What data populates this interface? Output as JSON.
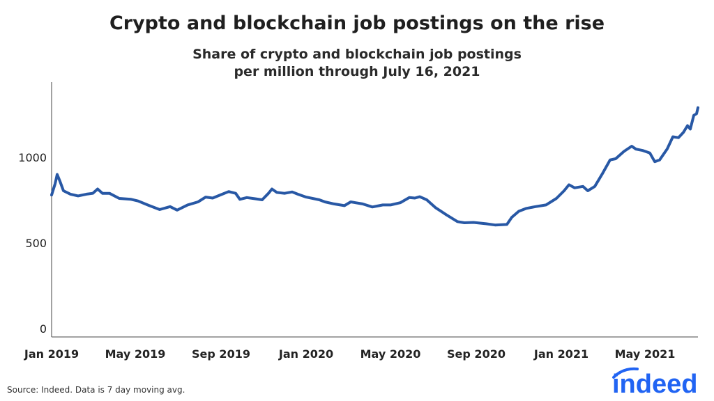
{
  "header": {
    "title": "Crypto and blockchain job postings on the rise",
    "subtitle_line1": "Share of crypto and blockchain job postings",
    "subtitle_line2": "per million through July 16, 2021"
  },
  "footer": {
    "source": "Source: Indeed. Data is 7 day moving avg.",
    "brand": "indeed"
  },
  "colors": {
    "line": "#2858a5",
    "axis": "#444444",
    "brand": "#2164f3"
  },
  "chart_data": {
    "type": "line",
    "title": "Crypto and blockchain job postings on the rise",
    "subtitle": "Share of crypto and blockchain job postings per million through July 16, 2021",
    "xlabel": "",
    "ylabel": "",
    "x_range": [
      "2019-01-01",
      "2021-07-16"
    ],
    "ylim": [
      0,
      1400
    ],
    "yticks": [
      0,
      500,
      1000
    ],
    "xtick_labels": [
      "Jan 2019",
      "May 2019",
      "Sep 2019",
      "Jan 2020",
      "May 2020",
      "Sep 2020",
      "Jan 2021",
      "May 2021"
    ],
    "xtick_dates": [
      "2019-01-01",
      "2019-05-01",
      "2019-09-01",
      "2020-01-01",
      "2020-05-01",
      "2020-09-01",
      "2021-01-01",
      "2021-05-01"
    ],
    "grid": false,
    "legend": "none",
    "series": [
      {
        "points": [
          [
            "2019-01-01",
            780
          ],
          [
            "2019-01-06",
            845
          ],
          [
            "2019-01-09",
            900
          ],
          [
            "2019-01-13",
            860
          ],
          [
            "2019-01-18",
            805
          ],
          [
            "2019-01-28",
            785
          ],
          [
            "2019-02-08",
            775
          ],
          [
            "2019-02-20",
            785
          ],
          [
            "2019-03-01",
            790
          ],
          [
            "2019-03-08",
            815
          ],
          [
            "2019-03-15",
            790
          ],
          [
            "2019-03-25",
            790
          ],
          [
            "2019-04-08",
            760
          ],
          [
            "2019-04-25",
            755
          ],
          [
            "2019-05-05",
            745
          ],
          [
            "2019-05-20",
            720
          ],
          [
            "2019-06-05",
            695
          ],
          [
            "2019-06-20",
            712
          ],
          [
            "2019-06-30",
            692
          ],
          [
            "2019-07-15",
            722
          ],
          [
            "2019-07-30",
            740
          ],
          [
            "2019-08-10",
            768
          ],
          [
            "2019-08-20",
            762
          ],
          [
            "2019-09-01",
            782
          ],
          [
            "2019-09-12",
            800
          ],
          [
            "2019-09-22",
            790
          ],
          [
            "2019-09-28",
            755
          ],
          [
            "2019-10-08",
            765
          ],
          [
            "2019-10-20",
            758
          ],
          [
            "2019-10-30",
            752
          ],
          [
            "2019-11-08",
            790
          ],
          [
            "2019-11-13",
            815
          ],
          [
            "2019-11-20",
            795
          ],
          [
            "2019-12-01",
            790
          ],
          [
            "2019-12-12",
            798
          ],
          [
            "2019-12-20",
            785
          ],
          [
            "2020-01-01",
            768
          ],
          [
            "2020-01-20",
            752
          ],
          [
            "2020-01-28",
            740
          ],
          [
            "2020-02-10",
            728
          ],
          [
            "2020-02-25",
            718
          ],
          [
            "2020-03-05",
            740
          ],
          [
            "2020-03-22",
            728
          ],
          [
            "2020-04-05",
            710
          ],
          [
            "2020-04-20",
            722
          ],
          [
            "2020-05-01",
            722
          ],
          [
            "2020-05-15",
            735
          ],
          [
            "2020-05-28",
            765
          ],
          [
            "2020-06-05",
            762
          ],
          [
            "2020-06-12",
            770
          ],
          [
            "2020-06-22",
            752
          ],
          [
            "2020-07-05",
            705
          ],
          [
            "2020-07-20",
            665
          ],
          [
            "2020-08-05",
            625
          ],
          [
            "2020-08-15",
            618
          ],
          [
            "2020-08-28",
            620
          ],
          [
            "2020-09-15",
            612
          ],
          [
            "2020-09-28",
            605
          ],
          [
            "2020-10-15",
            608
          ],
          [
            "2020-10-22",
            650
          ],
          [
            "2020-11-01",
            685
          ],
          [
            "2020-11-12",
            702
          ],
          [
            "2020-11-25",
            712
          ],
          [
            "2020-12-10",
            722
          ],
          [
            "2020-12-25",
            760
          ],
          [
            "2021-01-05",
            805
          ],
          [
            "2021-01-12",
            840
          ],
          [
            "2021-01-20",
            822
          ],
          [
            "2021-02-01",
            830
          ],
          [
            "2021-02-08",
            805
          ],
          [
            "2021-02-18",
            830
          ],
          [
            "2021-03-01",
            905
          ],
          [
            "2021-03-12",
            985
          ],
          [
            "2021-03-20",
            992
          ],
          [
            "2021-04-01",
            1035
          ],
          [
            "2021-04-12",
            1065
          ],
          [
            "2021-04-18",
            1048
          ],
          [
            "2021-04-28",
            1040
          ],
          [
            "2021-05-08",
            1025
          ],
          [
            "2021-05-15",
            975
          ],
          [
            "2021-05-22",
            985
          ],
          [
            "2021-06-02",
            1050
          ],
          [
            "2021-06-10",
            1120
          ],
          [
            "2021-06-18",
            1115
          ],
          [
            "2021-06-25",
            1145
          ],
          [
            "2021-07-01",
            1185
          ],
          [
            "2021-07-05",
            1165
          ],
          [
            "2021-07-10",
            1245
          ],
          [
            "2021-07-14",
            1255
          ],
          [
            "2021-07-16",
            1290
          ]
        ]
      }
    ]
  }
}
